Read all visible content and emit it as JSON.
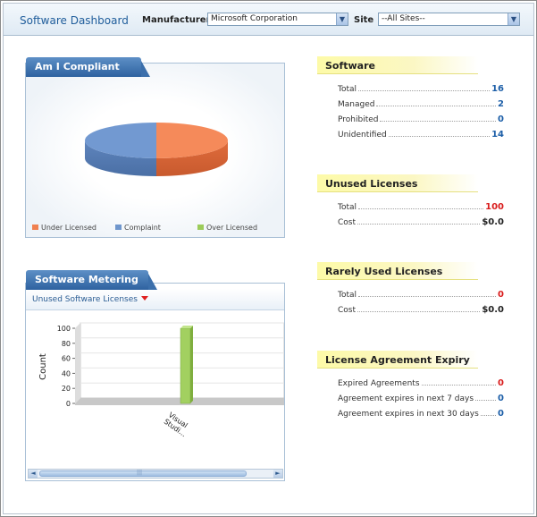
{
  "header": {
    "title": "Software Dashboard",
    "manufacturer_label": "Manufacturer",
    "manufacturer_value": "Microsoft Corporation",
    "site_label": "Site",
    "site_value": "--All Sites--"
  },
  "compliance_panel": {
    "title": "Am I Compliant",
    "legend": [
      {
        "label": "Under Licensed",
        "color": "#f08050"
      },
      {
        "label": "Complaint",
        "color": "#6f96cc"
      },
      {
        "label": "Over Licensed",
        "color": "#9ccc5a"
      }
    ]
  },
  "metering_panel": {
    "title": "Software Metering",
    "dropdown_label": "Unused Software Licenses",
    "scroll_left": "◄",
    "scroll_right": "►",
    "scroll_grip": "|||"
  },
  "chart_data": [
    {
      "type": "pie",
      "categories": [
        "Under Licensed",
        "Complaint",
        "Over Licensed"
      ],
      "values": [
        50,
        50,
        0
      ],
      "colors": [
        "#f08050",
        "#6f96cc",
        "#9ccc5a"
      ],
      "style": "3d"
    },
    {
      "type": "bar",
      "categories": [
        "Visual Studi..."
      ],
      "values": [
        100
      ],
      "ylabel": "Count",
      "yticks": [
        0,
        20,
        40,
        60,
        80,
        100
      ],
      "ylim": [
        0,
        100
      ],
      "color": "#9ccc5a"
    }
  ],
  "sections": {
    "software": {
      "title": "Software",
      "rows": [
        {
          "label": "Total",
          "value": "16"
        },
        {
          "label": "Managed",
          "value": "2"
        },
        {
          "label": "Prohibited",
          "value": "0"
        },
        {
          "label": "Unidentified",
          "value": "14"
        }
      ]
    },
    "unused_licenses": {
      "title": "Unused Licenses",
      "rows": [
        {
          "label": "Total",
          "value": "100"
        },
        {
          "label": "Cost",
          "value": "$0.0"
        }
      ]
    },
    "rarely_used": {
      "title": "Rarely Used Licenses",
      "rows": [
        {
          "label": "Total",
          "value": "0"
        },
        {
          "label": "Cost",
          "value": "$0.0"
        }
      ]
    },
    "license_expiry": {
      "title": "License Agreement Expiry",
      "rows": [
        {
          "label": "Expired Agreements",
          "value": "0"
        },
        {
          "label": "Agreement expires in next 7 days",
          "value": "0"
        },
        {
          "label": "Agreement expires in next 30 days",
          "value": "0"
        }
      ]
    }
  }
}
